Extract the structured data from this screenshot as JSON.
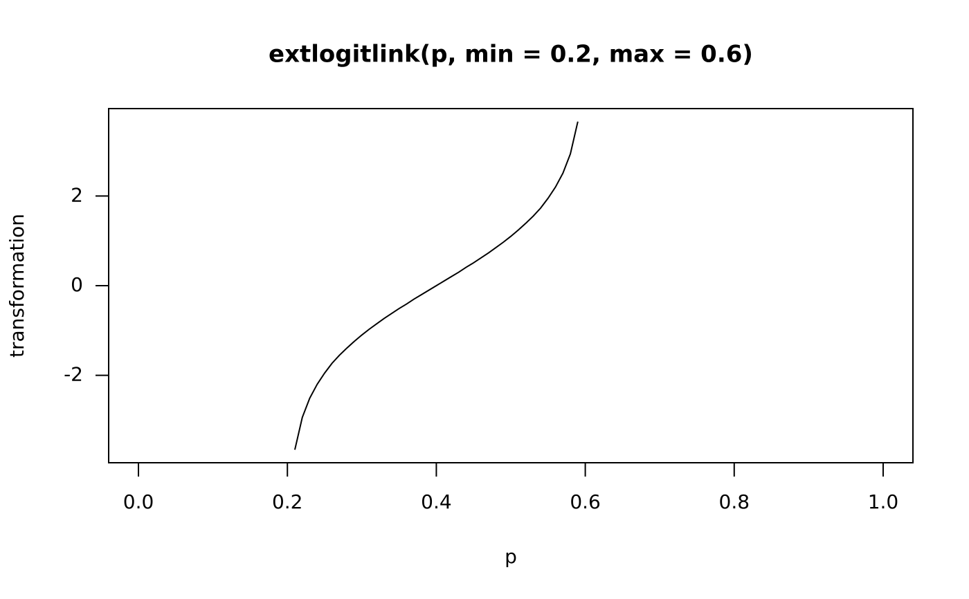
{
  "chart_data": {
    "type": "line",
    "title": "extlogitlink(p, min = 0.2, max = 0.6)",
    "x_label": "p",
    "y_label": "transformation",
    "x": [
      0.21,
      0.22,
      0.23,
      0.24,
      0.25,
      0.26,
      0.27,
      0.28,
      0.29,
      0.3,
      0.31,
      0.32,
      0.33,
      0.34,
      0.35,
      0.36,
      0.37,
      0.38,
      0.39,
      0.4,
      0.41,
      0.42,
      0.43,
      0.44,
      0.45,
      0.46,
      0.47,
      0.48,
      0.49,
      0.5,
      0.51,
      0.52,
      0.53,
      0.54,
      0.55,
      0.56,
      0.57,
      0.58,
      0.59
    ],
    "values": [
      -3.66,
      -2.94,
      -2.51,
      -2.2,
      -1.95,
      -1.73,
      -1.55,
      -1.39,
      -1.24,
      -1.1,
      -0.97,
      -0.85,
      -0.73,
      -0.62,
      -0.51,
      -0.41,
      -0.3,
      -0.2,
      -0.1,
      0,
      0.1,
      0.2,
      0.3,
      0.41,
      0.51,
      0.62,
      0.73,
      0.85,
      0.97,
      1.1,
      1.24,
      1.39,
      1.55,
      1.73,
      1.95,
      2.2,
      2.51,
      2.94,
      3.66
    ],
    "color": "#000000",
    "xlim": [
      -0.04,
      1.04
    ],
    "ylim": [
      -3.95,
      3.95
    ],
    "xticks": [
      {
        "value": 0,
        "label": "0.0"
      },
      {
        "value": 0.2,
        "label": "0.2"
      },
      {
        "value": 0.4,
        "label": "0.4"
      },
      {
        "value": 0.6,
        "label": "0.6"
      },
      {
        "value": 0.8,
        "label": "0.8"
      },
      {
        "value": 1,
        "label": "1.0"
      }
    ],
    "yticks": [
      -2,
      0,
      2
    ]
  }
}
